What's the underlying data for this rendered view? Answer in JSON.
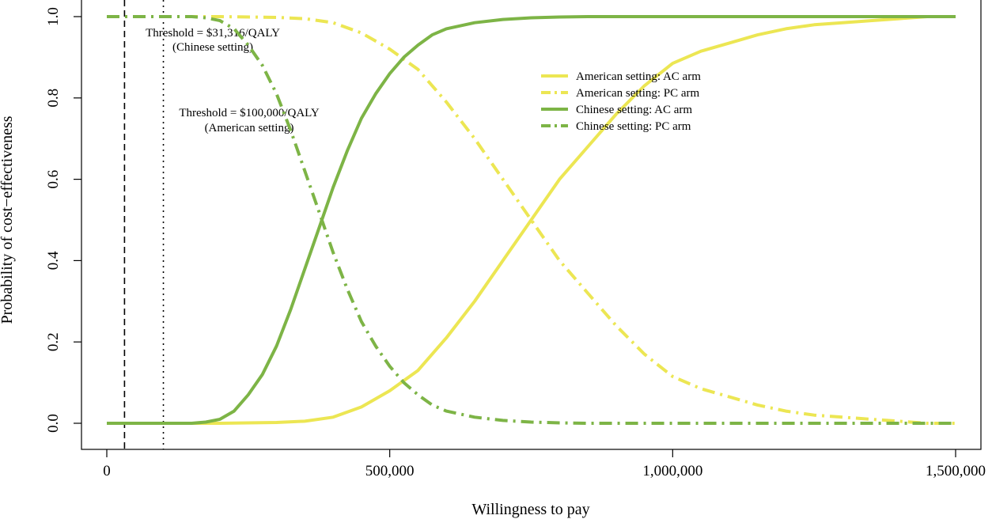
{
  "chart_data": {
    "type": "line",
    "title": "",
    "xlabel": "Willingness to pay",
    "ylabel": "Probability of cost−effectiveness",
    "xlim": [
      0,
      1500000
    ],
    "ylim": [
      0,
      1.0
    ],
    "grid": false,
    "legend_position": "top-right",
    "x_ticks": [
      0,
      500000,
      1000000,
      1500000
    ],
    "x_tick_labels": [
      "0",
      "500,000",
      "1,000,000",
      "1,500,000"
    ],
    "y_ticks": [
      0,
      0.2,
      0.4,
      0.6,
      0.8,
      1.0
    ],
    "y_tick_labels": [
      "0.0",
      "0.2",
      "0.4",
      "0.6",
      "0.8",
      "1.0"
    ],
    "colors": {
      "american": "#ece653",
      "chinese": "#7db446"
    },
    "thresholds": [
      {
        "value": 31316,
        "style": "dashed",
        "label_line1": "Threshold = $31,316/QALY",
        "label_line2": "(Chinese setting)"
      },
      {
        "value": 100000,
        "style": "dotted",
        "label_line1": "Threshold = $100,000/QALY",
        "label_line2": "(American setting)"
      }
    ],
    "series": [
      {
        "name": "American setting: AC arm",
        "color": "#ece653",
        "dash": "solid",
        "x": [
          0,
          200000,
          300000,
          350000,
          400000,
          450000,
          500000,
          550000,
          600000,
          650000,
          700000,
          750000,
          800000,
          850000,
          900000,
          950000,
          1000000,
          1050000,
          1100000,
          1150000,
          1200000,
          1250000,
          1300000,
          1350000,
          1400000,
          1450000,
          1500000
        ],
        "values": [
          0,
          0,
          0.002,
          0.005,
          0.015,
          0.04,
          0.08,
          0.13,
          0.21,
          0.3,
          0.4,
          0.5,
          0.6,
          0.68,
          0.76,
          0.83,
          0.885,
          0.915,
          0.935,
          0.955,
          0.97,
          0.98,
          0.985,
          0.99,
          0.995,
          1.0,
          1.0
        ]
      },
      {
        "name": "American setting: PC arm",
        "color": "#ece653",
        "dash": "dash-dot",
        "x": [
          0,
          200000,
          300000,
          350000,
          400000,
          450000,
          500000,
          550000,
          600000,
          650000,
          700000,
          750000,
          800000,
          850000,
          900000,
          950000,
          1000000,
          1050000,
          1100000,
          1150000,
          1200000,
          1250000,
          1300000,
          1350000,
          1400000,
          1450000,
          1500000
        ],
        "values": [
          1.0,
          1.0,
          0.998,
          0.995,
          0.985,
          0.96,
          0.92,
          0.87,
          0.79,
          0.7,
          0.6,
          0.5,
          0.4,
          0.32,
          0.24,
          0.17,
          0.115,
          0.085,
          0.065,
          0.045,
          0.03,
          0.02,
          0.015,
          0.01,
          0.005,
          0.0,
          0.0
        ]
      },
      {
        "name": "Chinese setting: AC arm",
        "color": "#7db446",
        "dash": "solid",
        "x": [
          0,
          150000,
          175000,
          200000,
          225000,
          250000,
          275000,
          300000,
          325000,
          350000,
          375000,
          400000,
          425000,
          450000,
          475000,
          500000,
          525000,
          550000,
          575000,
          600000,
          650000,
          700000,
          750000,
          800000,
          850000,
          1000000,
          1500000
        ],
        "values": [
          0,
          0,
          0.003,
          0.01,
          0.03,
          0.07,
          0.12,
          0.19,
          0.28,
          0.38,
          0.48,
          0.58,
          0.67,
          0.75,
          0.81,
          0.86,
          0.9,
          0.93,
          0.955,
          0.97,
          0.985,
          0.993,
          0.997,
          0.999,
          1.0,
          1.0,
          1.0
        ]
      },
      {
        "name": "Chinese setting: PC arm",
        "color": "#7db446",
        "dash": "dash-dot",
        "x": [
          0,
          150000,
          175000,
          200000,
          225000,
          250000,
          275000,
          300000,
          325000,
          350000,
          375000,
          400000,
          425000,
          450000,
          475000,
          500000,
          525000,
          550000,
          575000,
          600000,
          650000,
          700000,
          750000,
          800000,
          850000,
          1000000,
          1500000
        ],
        "values": [
          1.0,
          1.0,
          0.997,
          0.99,
          0.97,
          0.93,
          0.88,
          0.81,
          0.72,
          0.62,
          0.52,
          0.42,
          0.33,
          0.25,
          0.19,
          0.14,
          0.1,
          0.07,
          0.045,
          0.03,
          0.015,
          0.007,
          0.003,
          0.001,
          0.0,
          0.0,
          0.0
        ]
      }
    ]
  }
}
